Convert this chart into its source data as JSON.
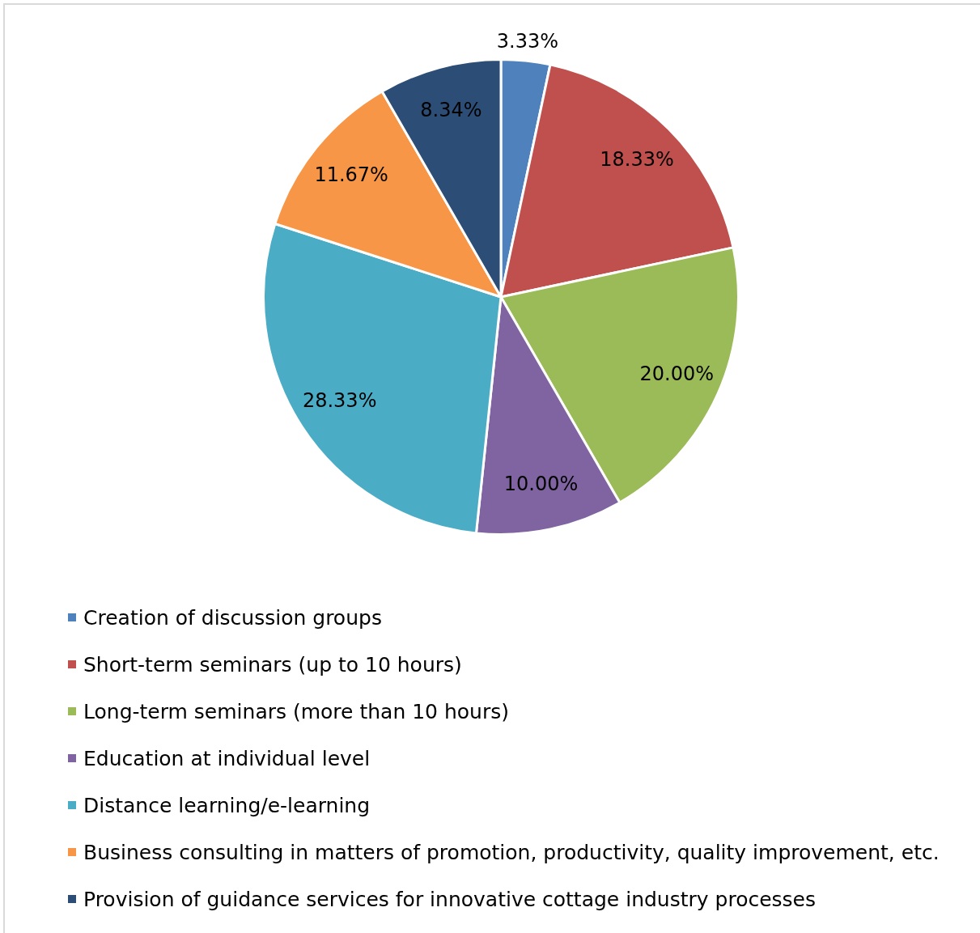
{
  "chart_data": {
    "type": "pie",
    "categories": [
      "Creation of discussion groups",
      "Short-term seminars (up to 10 hours)",
      "Long-term seminars (more than 10 hours)",
      "Education at individual level",
      "Distance learning/e-learning",
      "Business consulting in matters of promotion, productivity, quality improvement, etc.",
      "Provision of guidance services for innovative cottage industry processes"
    ],
    "values": [
      3.33,
      18.33,
      20.0,
      10.0,
      28.33,
      11.67,
      8.34
    ],
    "colors": [
      "#4f81bd",
      "#c0504d",
      "#9bbb59",
      "#8064a2",
      "#4bacc6",
      "#f79646",
      "#2c4d75"
    ],
    "value_labels": [
      "3.33%",
      "18.33%",
      "20.00%",
      "10.00%",
      "28.33%",
      "11.67%",
      "8.34%"
    ],
    "legend": "bottom"
  }
}
